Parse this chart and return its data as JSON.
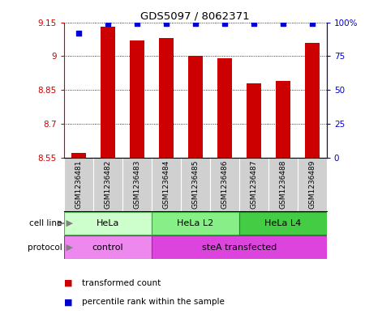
{
  "title": "GDS5097 / 8062371",
  "samples": [
    "GSM1236481",
    "GSM1236482",
    "GSM1236483",
    "GSM1236484",
    "GSM1236485",
    "GSM1236486",
    "GSM1236487",
    "GSM1236488",
    "GSM1236489"
  ],
  "transformed_counts": [
    8.57,
    9.13,
    9.07,
    9.08,
    9.0,
    8.99,
    8.88,
    8.89,
    9.06
  ],
  "percentile_ranks": [
    92,
    99,
    99,
    99,
    99,
    99,
    99,
    99,
    99
  ],
  "ylim_left": [
    8.55,
    9.15
  ],
  "ylim_right": [
    0,
    100
  ],
  "yticks_left": [
    8.55,
    8.7,
    8.85,
    9.0,
    9.15
  ],
  "yticks_right": [
    0,
    25,
    50,
    75,
    100
  ],
  "ytick_labels_left": [
    "8.55",
    "8.7",
    "8.85",
    "9",
    "9.15"
  ],
  "ytick_labels_right": [
    "0",
    "25",
    "50",
    "75",
    "100%"
  ],
  "bar_color": "#cc0000",
  "dot_color": "#0000cc",
  "sample_bg_color": "#d0d0d0",
  "cell_line_groups": [
    {
      "label": "HeLa",
      "start": 0,
      "end": 2,
      "color": "#ccffcc",
      "edge": "#55aa55"
    },
    {
      "label": "HeLa L2",
      "start": 3,
      "end": 5,
      "color": "#88ee88",
      "edge": "#33aa33"
    },
    {
      "label": "HeLa L4",
      "start": 6,
      "end": 8,
      "color": "#44cc44",
      "edge": "#228822"
    }
  ],
  "protocol_groups": [
    {
      "label": "control",
      "start": 0,
      "end": 2,
      "color": "#ee88ee",
      "edge": "#aa22aa"
    },
    {
      "label": "steA transfected",
      "start": 3,
      "end": 8,
      "color": "#dd44dd",
      "edge": "#aa22aa"
    }
  ],
  "legend_items": [
    {
      "color": "#cc0000",
      "label": "transformed count"
    },
    {
      "color": "#0000cc",
      "label": "percentile rank within the sample"
    }
  ]
}
